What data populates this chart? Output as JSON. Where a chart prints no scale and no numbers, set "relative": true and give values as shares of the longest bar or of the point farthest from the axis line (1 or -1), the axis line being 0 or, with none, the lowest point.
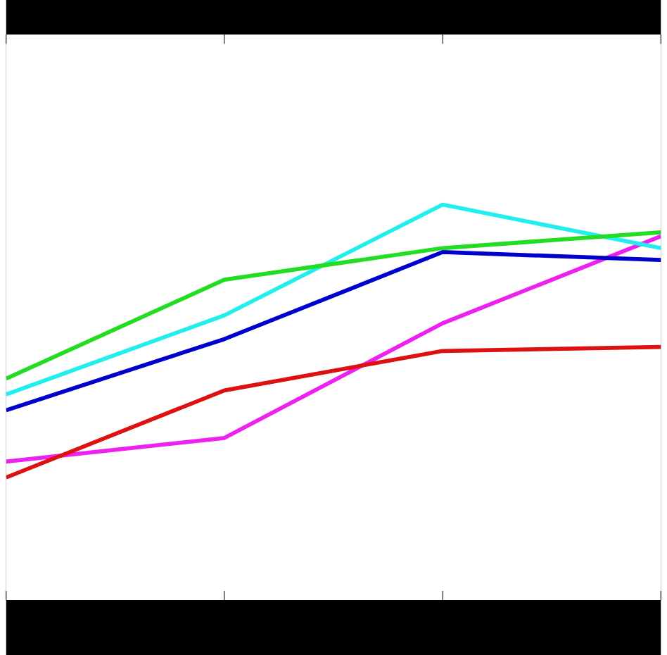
{
  "chart_data": {
    "type": "line",
    "relative": true,
    "marker": "none",
    "line_style": "solid",
    "categories": [
      null,
      null,
      null,
      null
    ],
    "series": [
      {
        "color": "#ee22ee",
        "values": [
          0.35,
          0.41,
          0.7,
          0.92
        ]
      },
      {
        "color": "#dd1111",
        "values": [
          0.31,
          0.53,
          0.63,
          0.64
        ]
      },
      {
        "color": "#0000cc",
        "values": [
          0.48,
          0.66,
          0.88,
          0.86
        ]
      },
      {
        "color": "#22eeee",
        "values": [
          0.52,
          0.72,
          1,
          0.89
        ]
      },
      {
        "color": "#22dd22",
        "values": [
          0.56,
          0.81,
          0.89,
          0.93
        ]
      }
    ]
  }
}
